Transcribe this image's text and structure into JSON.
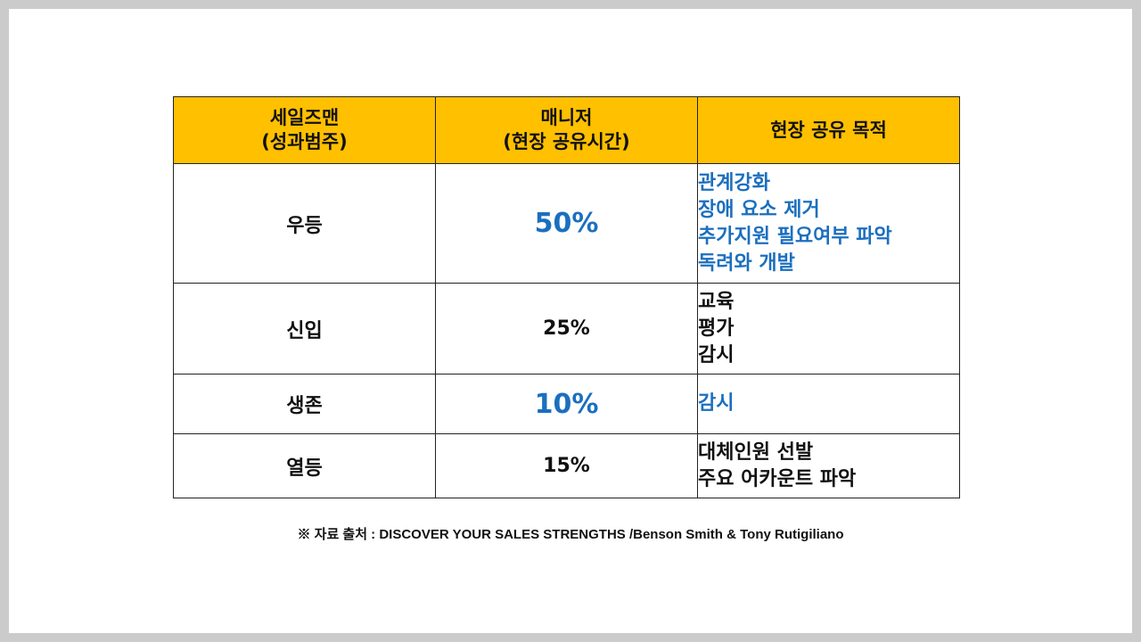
{
  "table": {
    "headers": [
      {
        "line1": "세일즈맨",
        "line2": "(성과범주)"
      },
      {
        "line1": "매니저",
        "line2": "(현장 공유시간)"
      },
      {
        "line1": "현장 공유 목적",
        "line2": ""
      }
    ],
    "rows": [
      {
        "category": "우등",
        "share": "50%",
        "highlight": true,
        "purposes": [
          "관계강화",
          "장애 요소 제거",
          "추가지원 필요여부 파악",
          "독려와 개발"
        ]
      },
      {
        "category": "신입",
        "share": "25%",
        "highlight": false,
        "purposes": [
          "교육",
          "평가",
          "감시"
        ]
      },
      {
        "category": "생존",
        "share": "10%",
        "highlight": true,
        "purposes": [
          "감시"
        ]
      },
      {
        "category": "열등",
        "share": "15%",
        "highlight": false,
        "purposes": [
          "대체인원 선발",
          "주요 어카운트 파악"
        ]
      }
    ]
  },
  "source_note": "※ 자료 출처 : DISCOVER YOUR SALES STRENGTHS /Benson Smith & Tony Rutigiliano",
  "colors": {
    "header_bg": "#ffc000",
    "highlight_text": "#1b6fbf",
    "border": "#222222"
  }
}
